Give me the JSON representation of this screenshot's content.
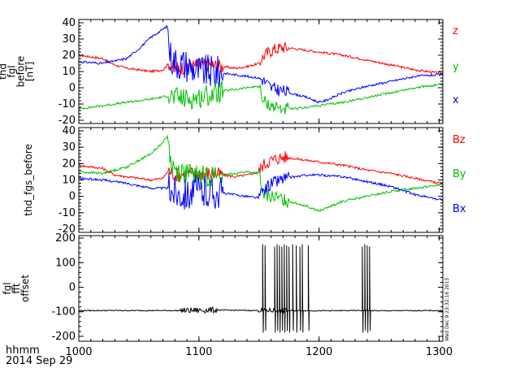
{
  "chart_data": [
    {
      "type": "line",
      "ylabel_lines": [
        "thd",
        "fgl",
        "before",
        "[nT]"
      ],
      "ylim": [
        -22,
        42
      ],
      "yticks": [
        -20,
        -10,
        0,
        10,
        20,
        30,
        40
      ],
      "xlim": [
        1000,
        1303
      ],
      "legend_placement": "right",
      "series": [
        {
          "name": "z",
          "color": "#ff0000",
          "x": [
            1000,
            1010,
            1020,
            1030,
            1040,
            1060,
            1070,
            1075,
            1080,
            1090,
            1100,
            1110,
            1120,
            1130,
            1140,
            1150,
            1153,
            1160,
            1170,
            1180,
            1190,
            1200,
            1220,
            1240,
            1260,
            1280,
            1300
          ],
          "y": [
            20,
            19,
            18,
            14,
            12,
            10,
            11,
            15,
            12,
            13,
            14,
            14,
            13,
            12,
            13,
            15,
            19,
            23,
            25,
            24,
            23,
            22,
            20,
            17,
            14,
            11,
            9
          ]
        },
        {
          "name": "y",
          "color": "#00c000",
          "x": [
            1000,
            1020,
            1040,
            1060,
            1075,
            1080,
            1090,
            1100,
            1110,
            1120,
            1130,
            1140,
            1150,
            1153,
            1160,
            1170,
            1180,
            1190,
            1200,
            1220,
            1240,
            1260,
            1280,
            1300
          ],
          "y": [
            -13,
            -11,
            -9,
            -7,
            -5,
            -6,
            -7,
            -6,
            -4,
            -2,
            -1,
            0,
            1,
            -8,
            -11,
            -13,
            -13,
            -12,
            -11,
            -9,
            -6,
            -3,
            0,
            2
          ]
        },
        {
          "name": "x",
          "color": "#0000ff",
          "x": [
            1000,
            1020,
            1040,
            1050,
            1060,
            1070,
            1074,
            1076,
            1080,
            1090,
            1100,
            1110,
            1120,
            1130,
            1140,
            1150,
            1153,
            1160,
            1170,
            1180,
            1190,
            1200,
            1205,
            1220,
            1240,
            1260,
            1280,
            1300
          ],
          "y": [
            16,
            15,
            18,
            24,
            31,
            36,
            38,
            20,
            16,
            14,
            10,
            10,
            9,
            8,
            7,
            6,
            5,
            0,
            -2,
            -4,
            -6,
            -9,
            -8,
            -3,
            1,
            4,
            7,
            8
          ]
        }
      ]
    },
    {
      "type": "line",
      "ylabel_lines": [
        "thd_fgs_before"
      ],
      "ylim": [
        -22,
        42
      ],
      "yticks": [
        -20,
        -10,
        0,
        10,
        20,
        30,
        40
      ],
      "xlim": [
        1000,
        1303
      ],
      "legend_placement": "right",
      "series": [
        {
          "name": "Bz",
          "color": "#ff0000",
          "x": [
            1000,
            1010,
            1020,
            1030,
            1040,
            1060,
            1070,
            1075,
            1080,
            1090,
            1100,
            1110,
            1120,
            1130,
            1140,
            1150,
            1153,
            1160,
            1170,
            1180,
            1190,
            1200,
            1220,
            1240,
            1260,
            1280,
            1300
          ],
          "y": [
            19,
            18,
            17,
            13,
            12,
            10,
            11,
            16,
            13,
            14,
            14,
            14,
            13,
            12,
            13,
            15,
            19,
            22,
            24,
            23,
            22,
            21,
            19,
            16,
            14,
            11,
            8
          ]
        },
        {
          "name": "By",
          "color": "#00c000",
          "x": [
            1000,
            1020,
            1040,
            1060,
            1070,
            1074,
            1076,
            1080,
            1090,
            1100,
            1110,
            1120,
            1130,
            1140,
            1150,
            1153,
            1160,
            1170,
            1180,
            1190,
            1200,
            1220,
            1240,
            1260,
            1280,
            1300
          ],
          "y": [
            15,
            14,
            18,
            26,
            33,
            37,
            22,
            16,
            14,
            12,
            13,
            13,
            14,
            15,
            14,
            1,
            0,
            -2,
            -4,
            -6,
            -9,
            -3,
            0,
            3,
            5,
            7
          ]
        },
        {
          "name": "Bx",
          "color": "#0000ff",
          "x": [
            1000,
            1020,
            1040,
            1060,
            1075,
            1080,
            1090,
            1100,
            1110,
            1120,
            1130,
            1140,
            1150,
            1153,
            1160,
            1170,
            1180,
            1190,
            1200,
            1220,
            1240,
            1260,
            1280,
            1300
          ],
          "y": [
            11,
            10,
            8,
            5,
            5,
            3,
            2,
            3,
            3,
            2,
            1,
            0,
            -1,
            3,
            8,
            11,
            12,
            13,
            13,
            12,
            9,
            6,
            1,
            -2
          ]
        }
      ]
    },
    {
      "type": "line",
      "ylabel_lines": [
        "fgl",
        "fft",
        "offset"
      ],
      "ylim": [
        -220,
        210
      ],
      "yticks": [
        -200,
        -100,
        0,
        100,
        200
      ],
      "xlim": [
        1000,
        1303
      ],
      "series": [
        {
          "color": "#000000",
          "x": [
            1000,
            1050,
            1090,
            1110,
            1150,
            1152,
            1156,
            1160,
            1200,
            1230,
            1240,
            1250,
            1300
          ],
          "y": [
            -95,
            -95,
            -95,
            -93,
            -95,
            -95,
            -95,
            -95,
            -96,
            -95,
            -95,
            -96,
            -95
          ]
        }
      ]
    }
  ],
  "x_axis": {
    "ticks": [
      1000,
      1100,
      1200,
      1300
    ],
    "tick_labels": [
      "1000",
      "1100",
      "1200",
      "1300"
    ],
    "label_lines": [
      "hhmm",
      "2014 Sep 29"
    ]
  },
  "stamp": "Wed Dec  9 23:32:16 2015",
  "colors": {
    "red": "#ff0000",
    "green": "#00c000",
    "blue": "#0000ff",
    "black": "#000000"
  }
}
